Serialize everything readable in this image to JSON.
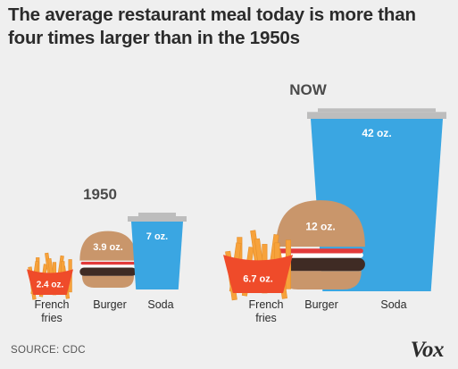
{
  "title": "The average restaurant meal today is more than four times larger than in the 1950s",
  "source": "SOURCE: CDC",
  "logo": "Vox",
  "colors": {
    "background": "#efefef",
    "text": "#2b2b2b",
    "fries_container": "#ef4b2a",
    "fries": "#f7a23b",
    "bun": "#c9966b",
    "patty": "#3f2b24",
    "ketchup": "#e23a3a",
    "cheese": "#ffffff",
    "cup": "#3aa6e2",
    "lid": "#bdbdbd"
  },
  "chart_data": {
    "type": "pictogram",
    "unit": "oz.",
    "groups": [
      {
        "name": "1950",
        "items": [
          {
            "category": "French fries",
            "value": 2.4,
            "label": "2.4 oz."
          },
          {
            "category": "Burger",
            "value": 3.9,
            "label": "3.9 oz."
          },
          {
            "category": "Soda",
            "value": 7,
            "label": "7 oz."
          }
        ]
      },
      {
        "name": "NOW",
        "items": [
          {
            "category": "French fries",
            "value": 6.7,
            "label": "6.7 oz."
          },
          {
            "category": "Burger",
            "value": 12,
            "label": "12 oz."
          },
          {
            "category": "Soda",
            "value": 42,
            "label": "42 oz."
          }
        ]
      }
    ],
    "category_labels": {
      "fries": [
        "French",
        "fries"
      ],
      "burger": "Burger",
      "soda": "Soda"
    }
  }
}
